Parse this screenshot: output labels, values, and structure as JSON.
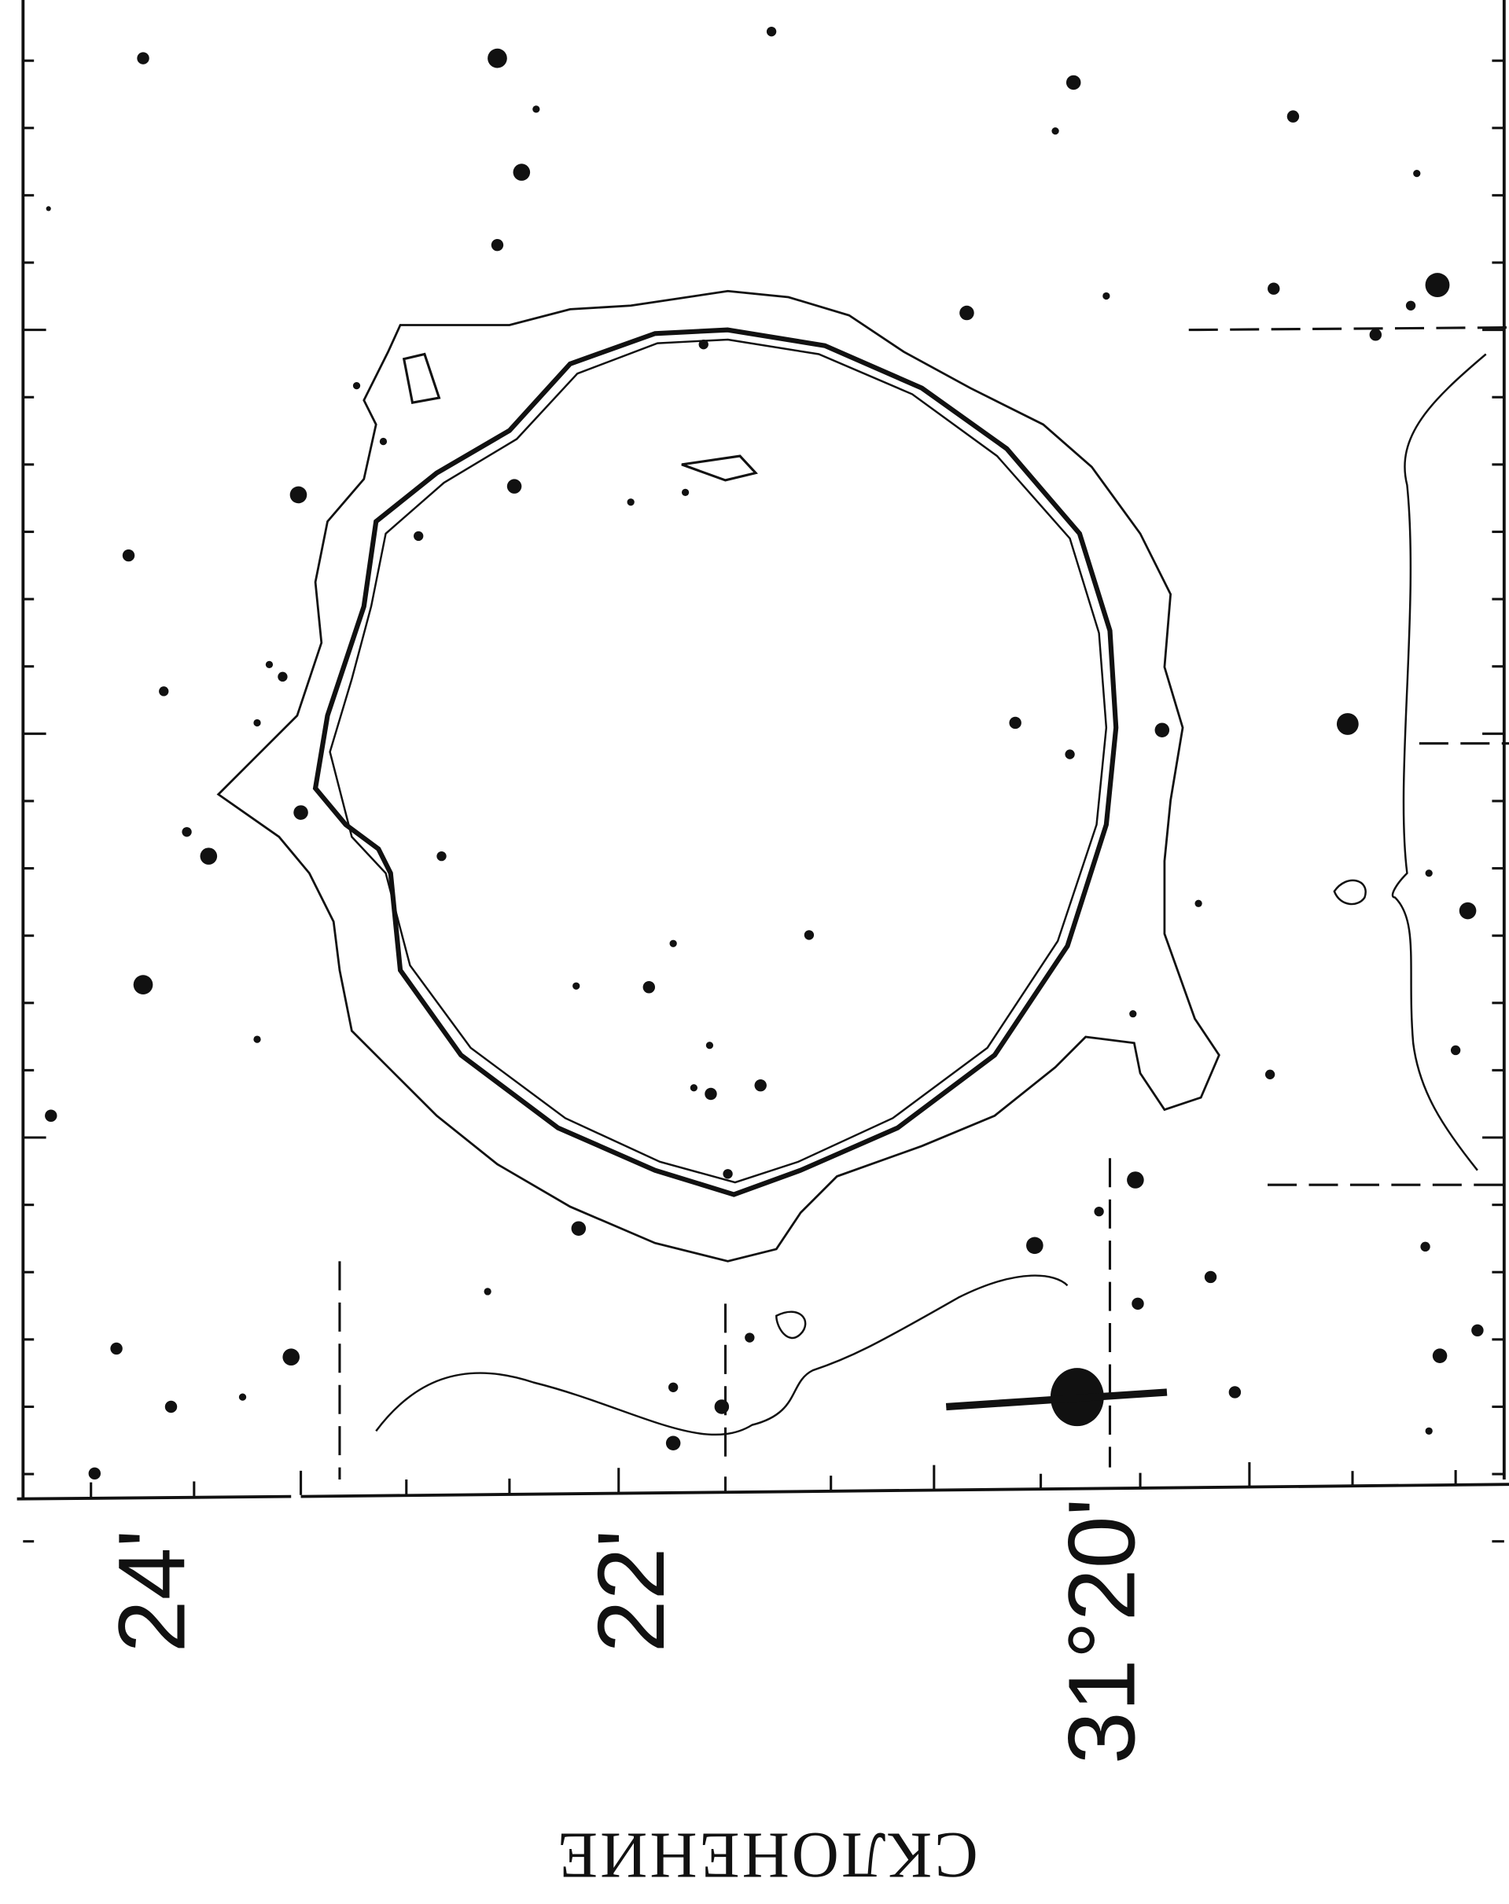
{
  "axis": {
    "tick_labels": [
      "24'",
      "22'",
      "31°20'"
    ],
    "title": "СКЛОНЕНИЕ"
  }
}
